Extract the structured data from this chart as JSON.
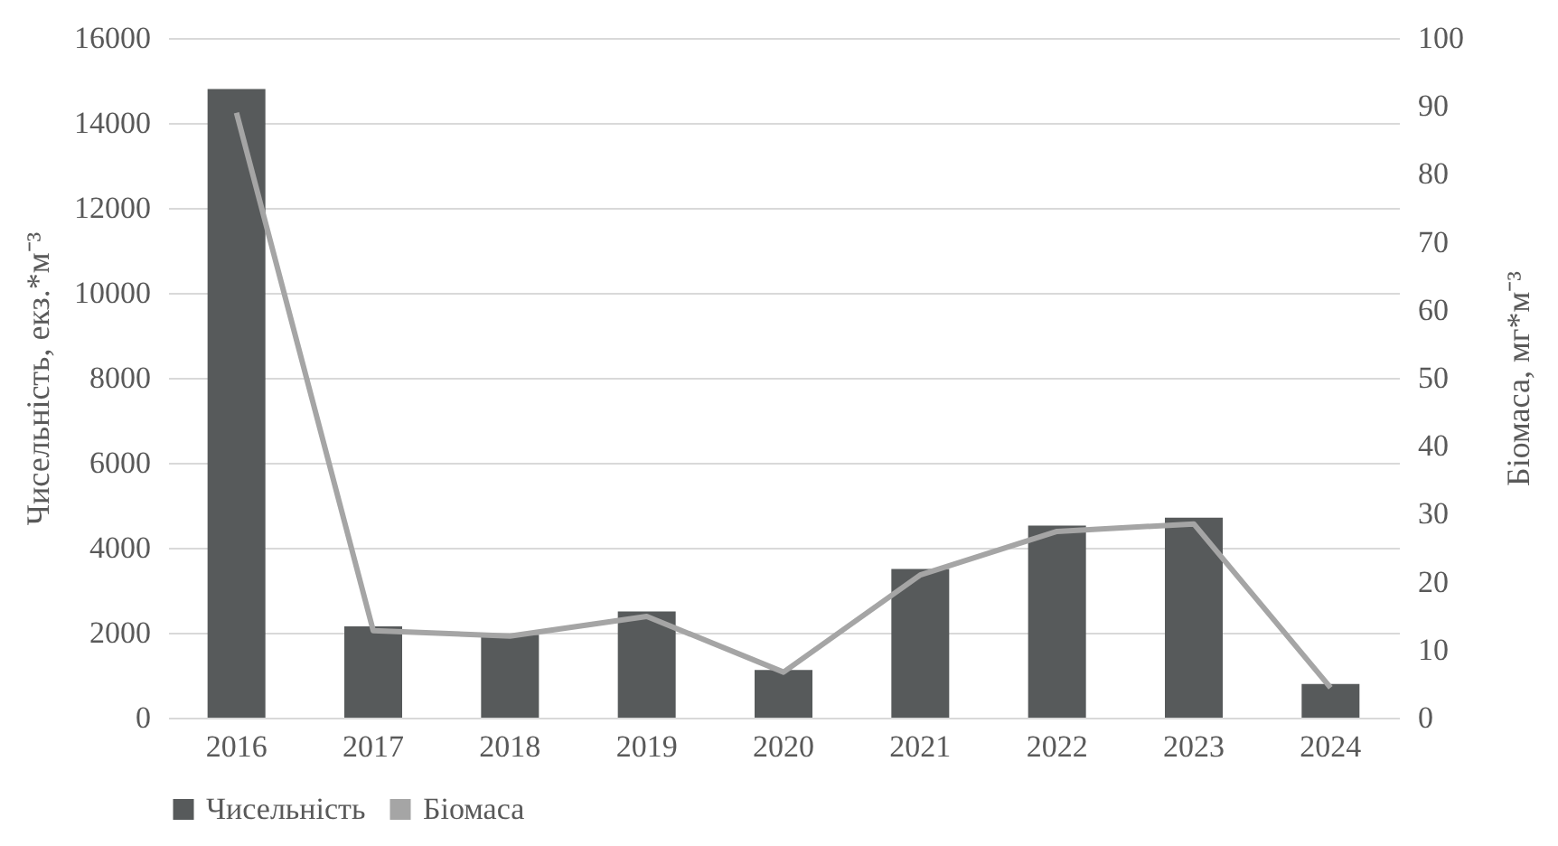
{
  "chart_data": {
    "type": "bar",
    "ylabel": "Чисельність, екз.*м⁻³",
    "y2label": "Біомаса, мг*м⁻³",
    "categories": [
      "2016",
      "2017",
      "2018",
      "2019",
      "2020",
      "2021",
      "2022",
      "2023",
      "2024"
    ],
    "series": [
      {
        "name": "Чисельність",
        "color": "#575a5b",
        "values": [
          14800,
          2150,
          1950,
          2500,
          1120,
          3500,
          4520,
          4710,
          790
        ]
      },
      {
        "name": "Біомаса",
        "type": "line",
        "axis": "y2",
        "color": "#a5a5a5",
        "values": [
          89,
          12.8,
          12,
          14.9,
          6.7,
          21,
          27.4,
          28.5,
          4.4
        ]
      }
    ],
    "ylim": [
      0,
      16000
    ],
    "yticks": [
      0,
      2000,
      4000,
      6000,
      8000,
      10000,
      12000,
      14000,
      16000
    ],
    "y2lim": [
      0,
      100
    ],
    "y2ticks": [
      0,
      10,
      20,
      30,
      40,
      50,
      60,
      70,
      80,
      90,
      100
    ],
    "grid": "y",
    "legend": "bottom",
    "marker": "none",
    "line_style": "solid"
  }
}
